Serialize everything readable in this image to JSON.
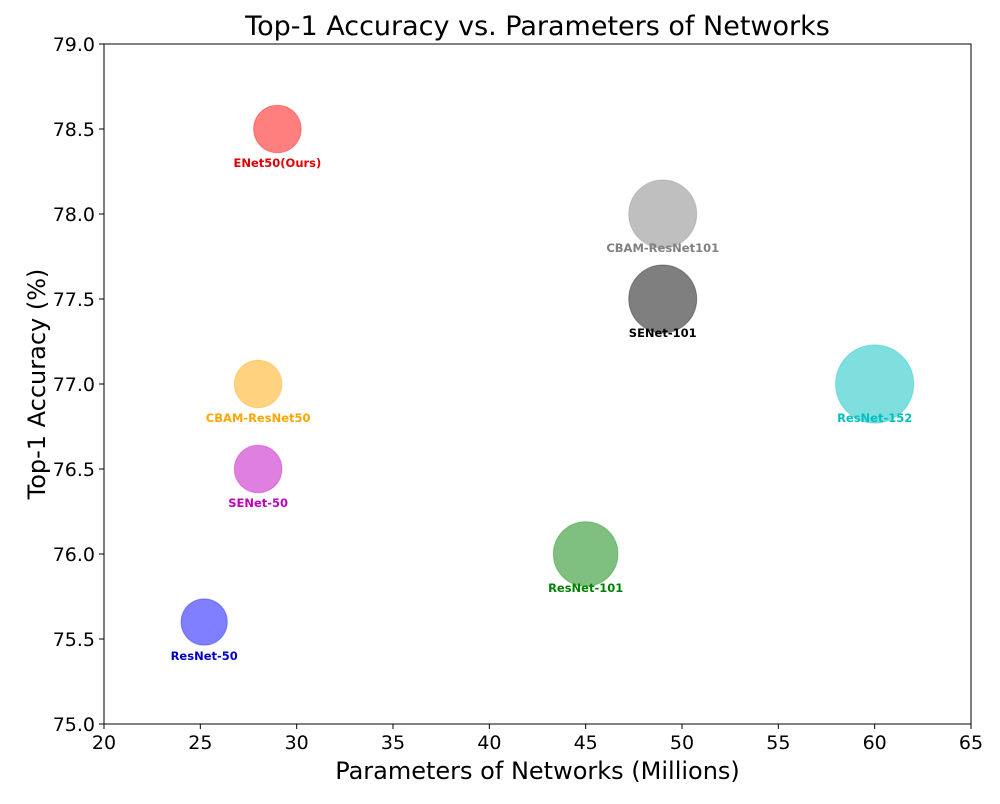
{
  "chart_data": {
    "type": "scatter",
    "title": "Top-1 Accuracy vs. Parameters of Networks",
    "xlabel": "Parameters of Networks (Millions)",
    "ylabel": "Top-1 Accuracy (%)",
    "xlim": [
      20,
      65
    ],
    "ylim": [
      75.0,
      79.0
    ],
    "xticks": [
      20,
      25,
      30,
      35,
      40,
      45,
      50,
      55,
      60,
      65
    ],
    "xtick_labels": [
      "20",
      "25",
      "30",
      "35",
      "40",
      "45",
      "50",
      "55",
      "60",
      "65"
    ],
    "yticks": [
      75.0,
      75.5,
      76.0,
      76.5,
      77.0,
      77.5,
      78.0,
      78.5,
      79.0
    ],
    "ytick_labels": [
      "75.0",
      "75.5",
      "76.0",
      "76.5",
      "77.0",
      "77.5",
      "78.0",
      "78.5",
      "79.0"
    ],
    "grid": false,
    "legend": "none",
    "points": [
      {
        "label": "ENet50(Ours)",
        "x": 29.0,
        "y": 78.5,
        "color": "#ff0000",
        "label_color": "#e00000",
        "size": 0.7
      },
      {
        "label": "CBAM-ResNet101",
        "x": 49.0,
        "y": 78.0,
        "color": "#808080",
        "label_color": "#808080",
        "size": 1.0
      },
      {
        "label": "SENet-101",
        "x": 49.0,
        "y": 77.5,
        "color": "#000000",
        "label_color": "#000000",
        "size": 1.0
      },
      {
        "label": "CBAM-ResNet50",
        "x": 28.0,
        "y": 77.0,
        "color": "#ffa500",
        "label_color": "#ffa500",
        "size": 0.7
      },
      {
        "label": "ResNet-152",
        "x": 60.0,
        "y": 77.0,
        "color": "#00bfbf",
        "label_color": "#00bfbf",
        "size": 1.15
      },
      {
        "label": "SENet-50",
        "x": 28.0,
        "y": 76.5,
        "color": "#bf00bf",
        "label_color": "#bf00bf",
        "size": 0.7
      },
      {
        "label": "ResNet-101",
        "x": 45.0,
        "y": 76.0,
        "color": "#008000",
        "label_color": "#008000",
        "size": 0.95
      },
      {
        "label": "ResNet-50",
        "x": 25.2,
        "y": 75.6,
        "color": "#0000ff",
        "label_color": "#0000cc",
        "size": 0.68
      }
    ]
  }
}
